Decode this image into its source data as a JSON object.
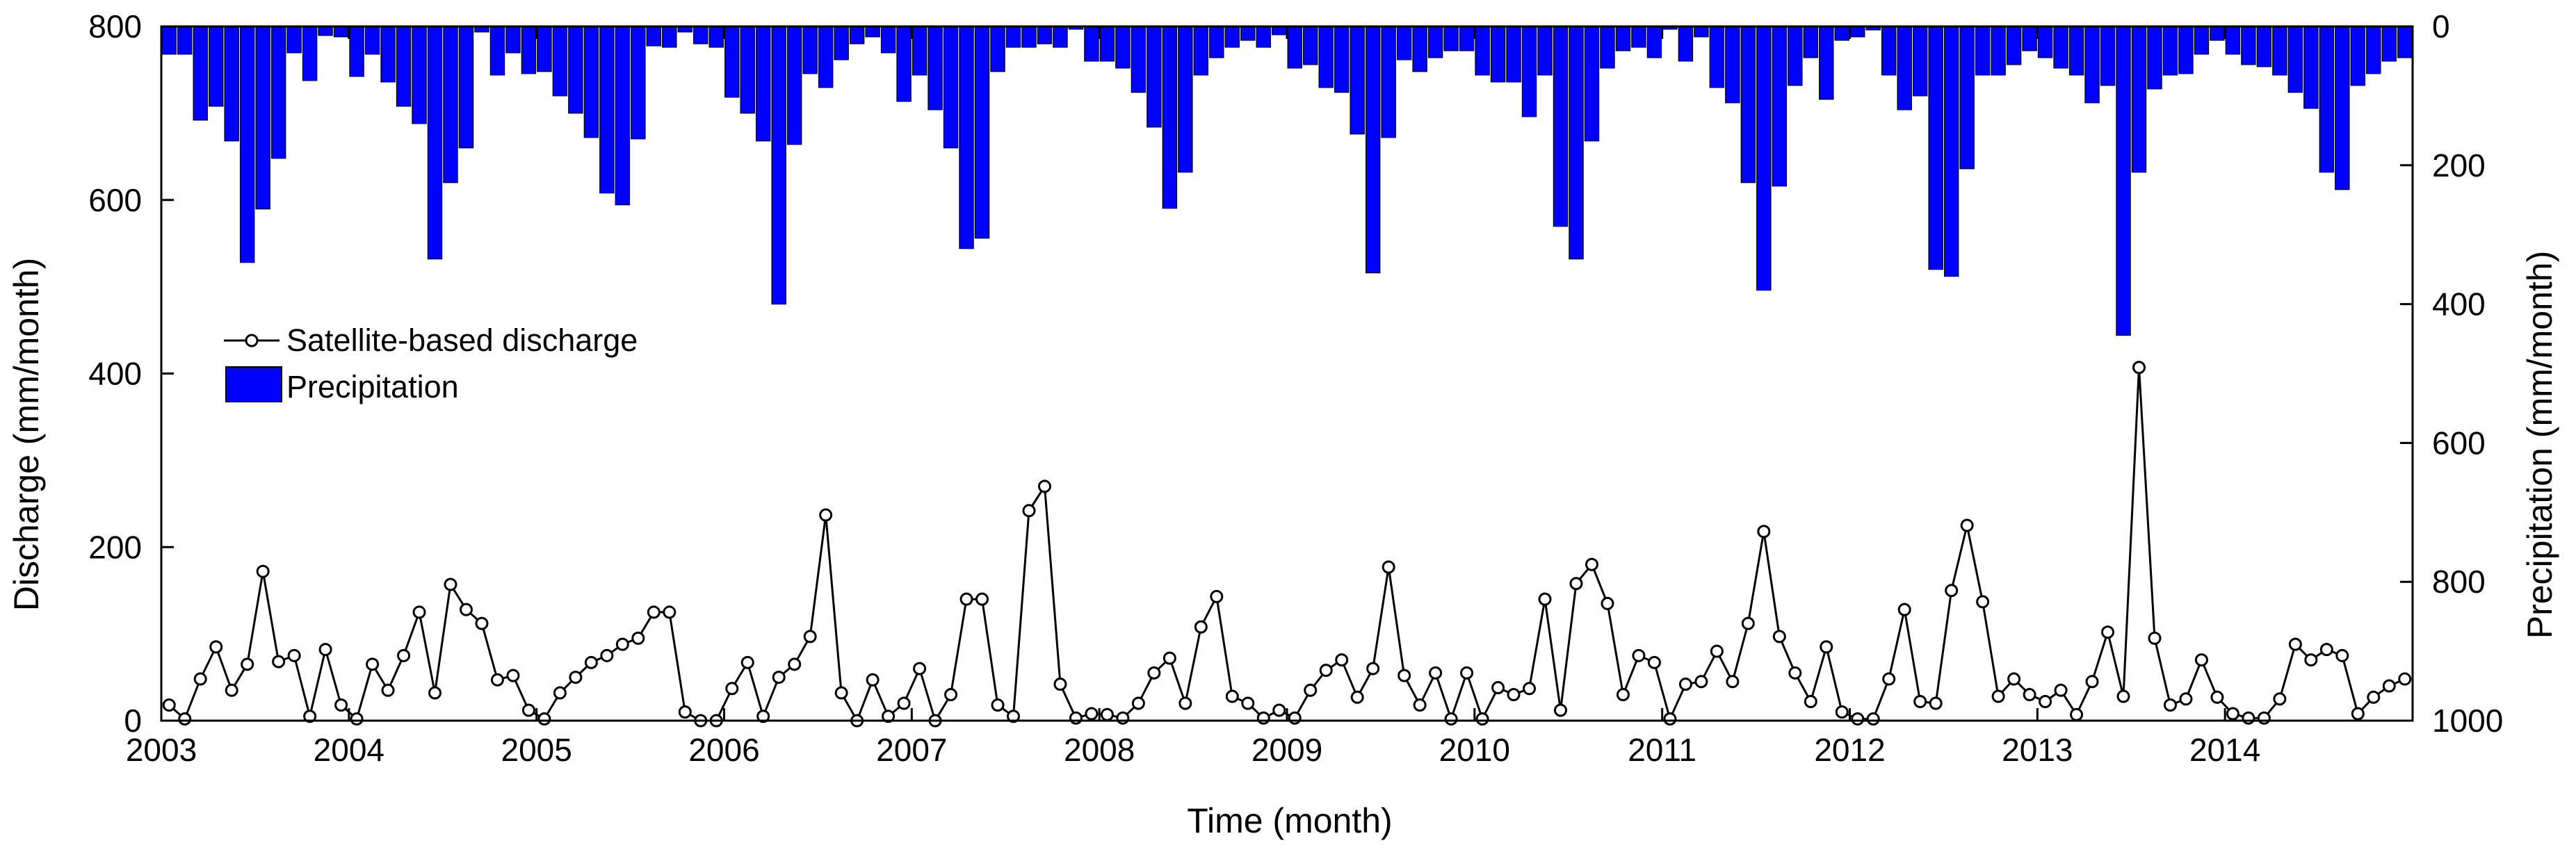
{
  "chart_data": {
    "type": "bar+line",
    "xlabel": "Time (month)",
    "ylabel_left": "Discharge (mm/month)",
    "ylabel_right": "Precipitation (mm/month)",
    "x_start": "2003-01",
    "year_ticks": [
      "2003",
      "2004",
      "2005",
      "2006",
      "2007",
      "2008",
      "2009",
      "2010",
      "2011",
      "2012",
      "2013",
      "2014"
    ],
    "left_axis": {
      "range": [
        0,
        800
      ],
      "ticks": [
        "0",
        "200",
        "400",
        "600",
        "800"
      ]
    },
    "right_axis": {
      "range": [
        0,
        1000
      ],
      "inverted": true,
      "ticks": [
        "0",
        "200",
        "400",
        "600",
        "800",
        "1000"
      ]
    },
    "legend": {
      "position": "upper-left",
      "discharge_label": "Satellite-based discharge",
      "precipitation_label": "Precipitation"
    },
    "colors": {
      "precipitation": "#0000ff",
      "discharge": "#000000"
    },
    "series": [
      {
        "name": "Satellite-based discharge",
        "kind": "line-with-circle-markers",
        "axis": "left",
        "values": [
          18,
          2,
          48,
          85,
          35,
          65,
          172,
          68,
          75,
          5,
          82,
          18,
          2,
          65,
          35,
          75,
          125,
          32,
          157,
          128,
          112,
          47,
          52,
          12,
          2,
          32,
          50,
          67,
          75,
          88,
          95,
          125,
          125,
          10,
          0,
          0,
          37,
          67,
          5,
          50,
          65,
          97,
          237,
          32,
          0,
          47,
          5,
          20,
          60,
          0,
          30,
          140,
          140,
          18,
          5,
          242,
          270,
          42,
          3,
          8,
          7,
          3,
          20,
          55,
          72,
          20,
          108,
          143,
          28,
          20,
          3,
          12,
          3,
          35,
          58,
          70,
          27,
          60,
          177,
          52,
          18,
          55,
          2,
          55,
          2,
          38,
          30,
          37,
          140,
          12,
          158,
          180,
          135,
          30,
          75,
          67,
          2,
          42,
          45,
          80,
          45,
          112,
          218,
          97,
          55,
          22,
          85,
          10,
          2,
          2,
          48,
          128,
          22,
          20,
          150,
          225,
          137,
          28,
          48,
          30,
          22,
          35,
          7,
          45,
          102,
          28,
          407,
          95,
          18,
          25,
          70,
          27,
          8,
          3,
          3,
          25,
          88,
          70,
          82,
          75,
          8,
          27,
          40,
          48
        ]
      },
      {
        "name": "Precipitation",
        "kind": "bar",
        "axis": "right",
        "values": [
          40,
          40,
          135,
          115,
          165,
          340,
          263,
          190,
          38,
          78,
          13,
          15,
          72,
          40,
          80,
          115,
          140,
          335,
          225,
          175,
          8,
          70,
          38,
          68,
          65,
          100,
          125,
          160,
          240,
          257,
          162,
          28,
          30,
          8,
          25,
          30,
          102,
          125,
          165,
          400,
          170,
          68,
          88,
          48,
          25,
          15,
          38,
          108,
          70,
          120,
          175,
          320,
          305,
          65,
          30,
          30,
          25,
          30,
          4,
          50,
          50,
          60,
          95,
          145,
          262,
          210,
          70,
          45,
          30,
          20,
          30,
          12,
          60,
          55,
          88,
          95,
          155,
          355,
          160,
          48,
          65,
          45,
          35,
          35,
          70,
          80,
          80,
          130,
          70,
          288,
          335,
          165,
          60,
          35,
          30,
          45,
          4,
          50,
          15,
          88,
          110,
          225,
          380,
          230,
          85,
          45,
          105,
          20,
          15,
          5,
          70,
          120,
          100,
          350,
          360,
          205,
          70,
          70,
          55,
          35,
          45,
          60,
          70,
          110,
          85,
          445,
          210,
          90,
          70,
          68,
          40,
          20,
          40,
          55,
          58,
          70,
          95,
          118,
          210,
          235,
          85,
          68,
          50,
          45
        ]
      }
    ]
  }
}
